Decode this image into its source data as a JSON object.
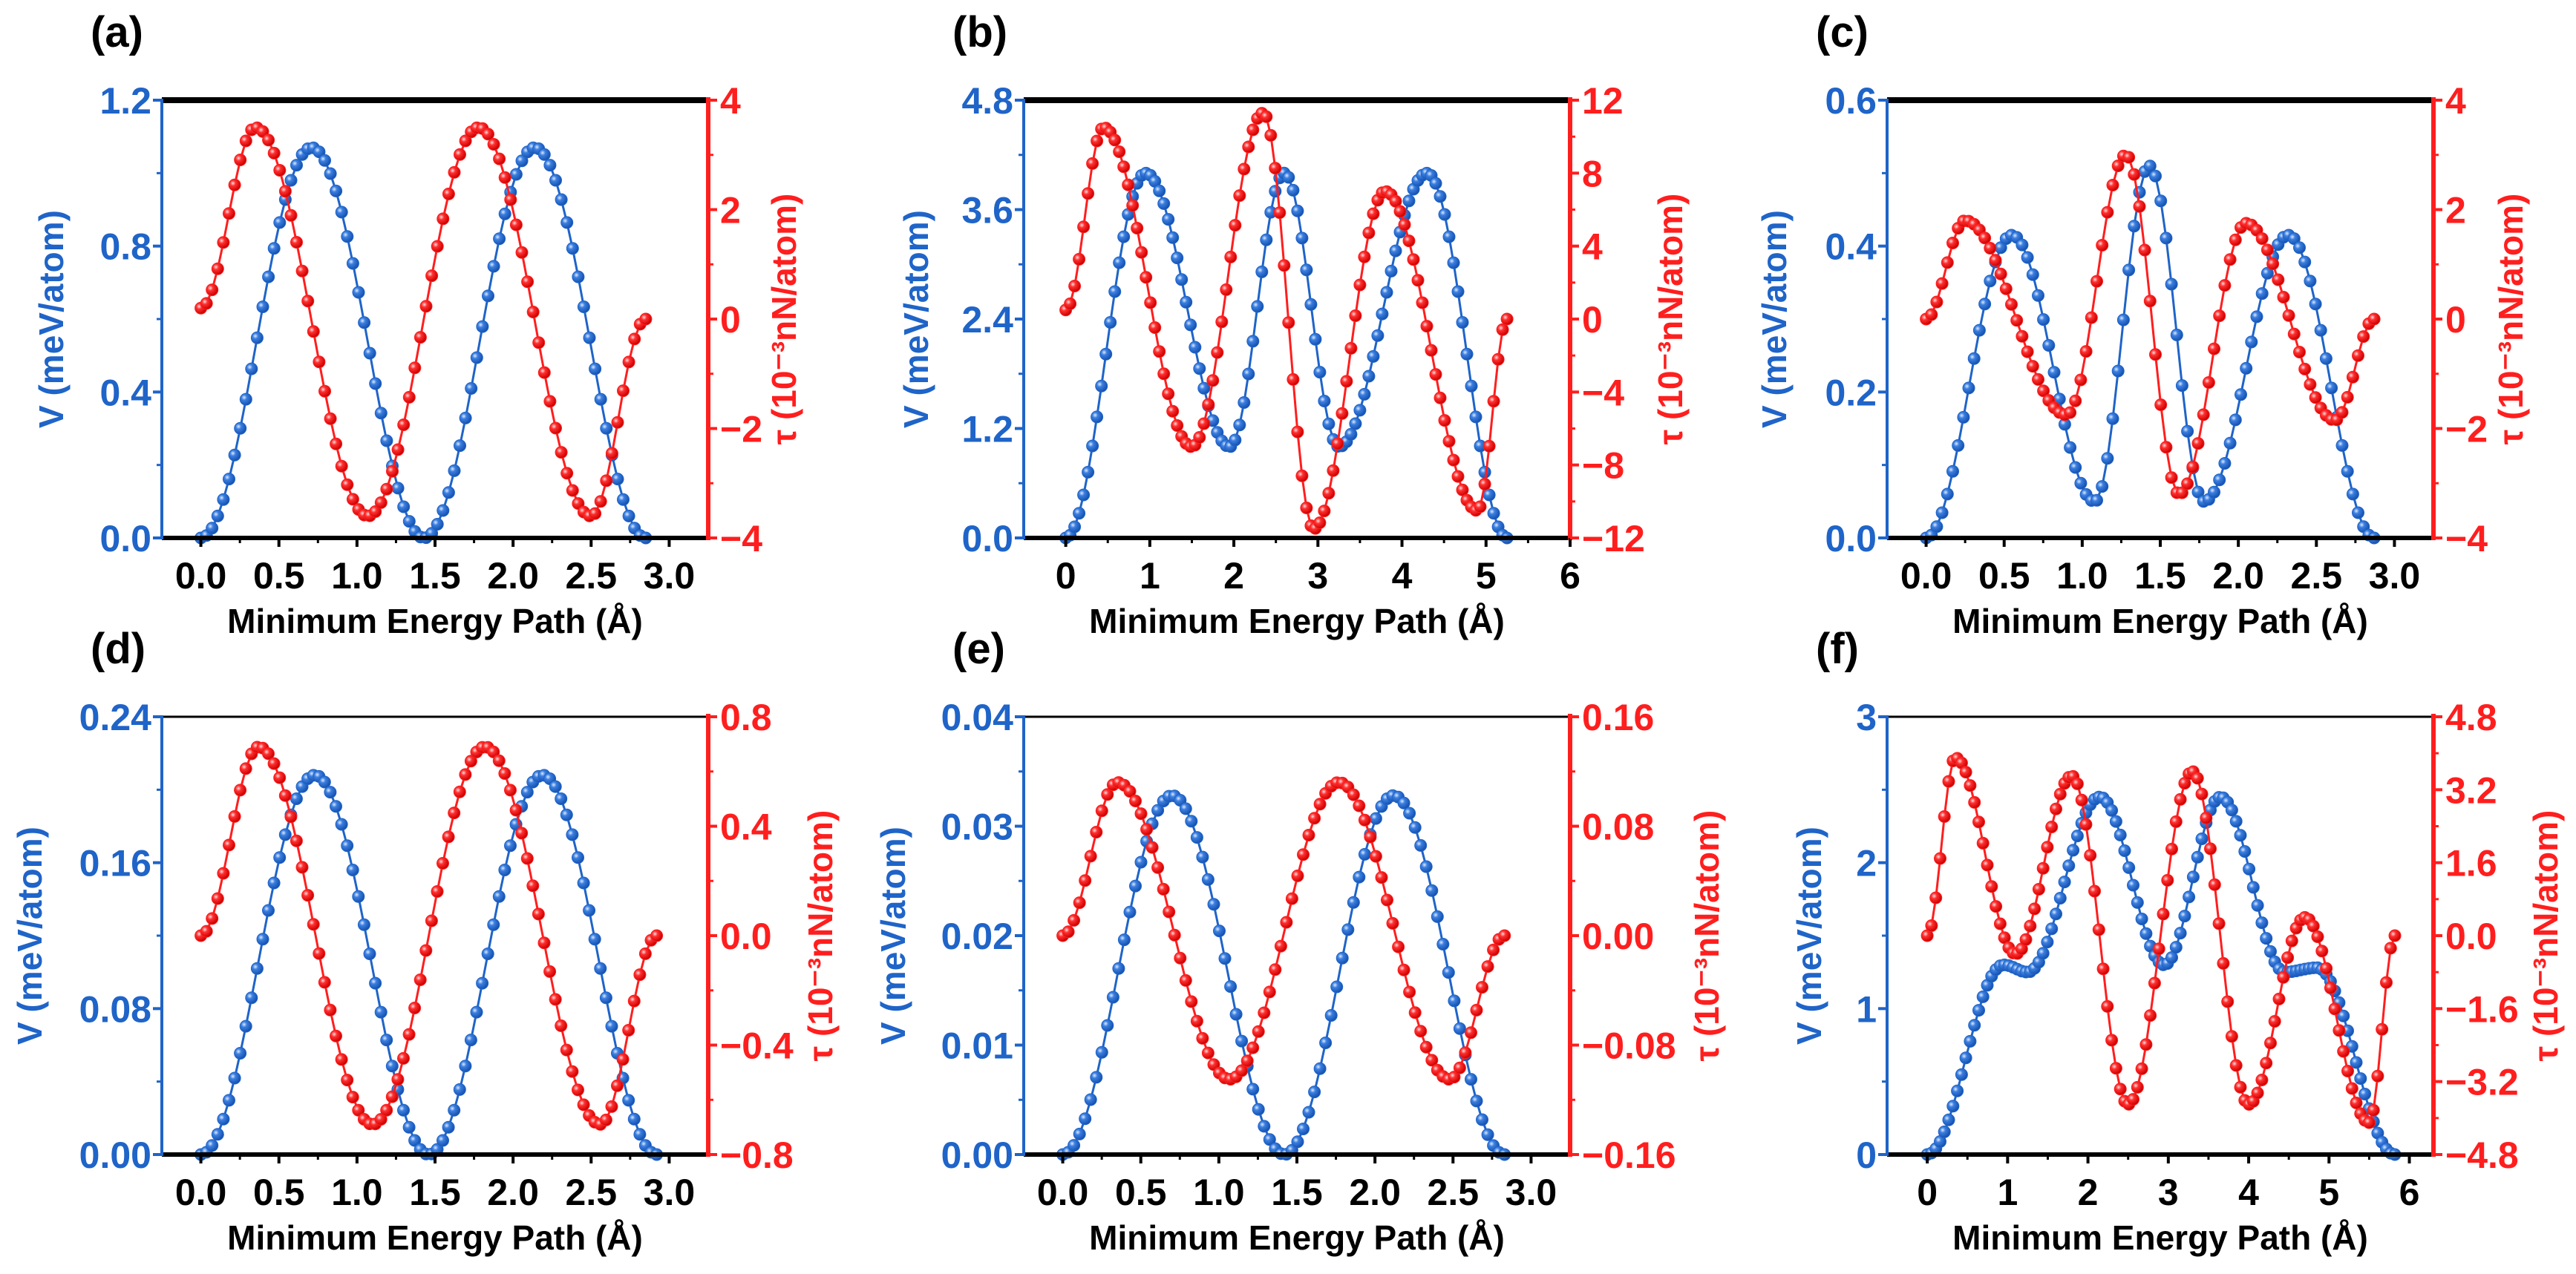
{
  "colors": {
    "v": "#1f64c8",
    "tau": "#ff1e1e",
    "axis": "#000000"
  },
  "chart_data": [
    {
      "panel_label": "(a)",
      "type": "line",
      "xlabel": "Minimum Energy Path (Å)",
      "ylabel_left": "V (meV/atom)",
      "ylabel_right": "τ (10⁻³nN/atom)",
      "xlim": [
        -0.25,
        3.25
      ],
      "ylim_left": [
        0,
        1.2
      ],
      "ylim_right": [
        -4,
        4
      ],
      "xticks": [
        "0.0",
        "0.5",
        "1.0",
        "1.5",
        "2.0",
        "2.5",
        "3.0"
      ],
      "yticks_left": [
        "0.0",
        "0.4",
        "0.8",
        "1.2"
      ],
      "yticks_right": [
        "−4",
        "−2",
        "0",
        "2",
        "4"
      ],
      "series": [
        {
          "name": "V",
          "axis": "left",
          "num_points": 80,
          "keypoints": [
            [
              0,
              0
            ],
            [
              0.71,
              1.07
            ],
            [
              1.43,
              0
            ],
            [
              2.14,
              1.07
            ],
            [
              2.85,
              0
            ]
          ]
        },
        {
          "name": "τ",
          "axis": "right",
          "num_points": 80,
          "keypoints": [
            [
              0,
              0.2
            ],
            [
              0.35,
              3.5
            ],
            [
              1.07,
              -3.6
            ],
            [
              1.78,
              3.5
            ],
            [
              2.5,
              -3.6
            ],
            [
              2.85,
              0
            ]
          ]
        }
      ]
    },
    {
      "panel_label": "(b)",
      "type": "line",
      "xlabel": "Minimum Energy Path (Å)",
      "ylabel_left": "V (meV/atom)",
      "ylabel_right": "τ (10⁻³nN/atom)",
      "xlim": [
        -0.5,
        6
      ],
      "ylim_left": [
        0,
        4.8
      ],
      "ylim_right": [
        -12,
        12
      ],
      "xticks": [
        "0",
        "1",
        "2",
        "3",
        "4",
        "5",
        "6"
      ],
      "yticks_left": [
        "0.0",
        "1.2",
        "2.4",
        "3.6",
        "4.8"
      ],
      "yticks_right": [
        "−12",
        "−8",
        "−4",
        "0",
        "4",
        "8",
        "12"
      ],
      "series": [
        {
          "name": "V",
          "axis": "left",
          "num_points": 100,
          "keypoints": [
            [
              0,
              0
            ],
            [
              0.95,
              4.0
            ],
            [
              1.95,
              1.0
            ],
            [
              2.6,
              4.0
            ],
            [
              3.25,
              1.0
            ],
            [
              4.3,
              4.0
            ],
            [
              5.25,
              0
            ]
          ]
        },
        {
          "name": "τ",
          "axis": "right",
          "num_points": 100,
          "keypoints": [
            [
              0,
              0.5
            ],
            [
              0.45,
              10.5
            ],
            [
              1.5,
              -7
            ],
            [
              2.35,
              11.3
            ],
            [
              2.95,
              -11.5
            ],
            [
              3.8,
              7
            ],
            [
              4.9,
              -10.5
            ],
            [
              5.25,
              0
            ]
          ]
        }
      ]
    },
    {
      "panel_label": "(c)",
      "type": "line",
      "xlabel": "Minimum Energy Path (Å)",
      "ylabel_left": "V (meV/atom)",
      "ylabel_right": "τ (10⁻³nN/atom)",
      "xlim": [
        -0.25,
        3.25
      ],
      "ylim_left": [
        0,
        0.6
      ],
      "ylim_right": [
        -4,
        4
      ],
      "xticks": [
        "0.0",
        "0.5",
        "1.0",
        "1.5",
        "2.0",
        "2.5",
        "3.0"
      ],
      "yticks_left": [
        "0.0",
        "0.2",
        "0.4",
        "0.6"
      ],
      "yticks_right": [
        "−4",
        "−2",
        "0",
        "2",
        "4"
      ],
      "series": [
        {
          "name": "V",
          "axis": "left",
          "num_points": 85,
          "keypoints": [
            [
              0,
              0
            ],
            [
              0.55,
              0.415
            ],
            [
              1.08,
              0.05
            ],
            [
              1.43,
              0.51
            ],
            [
              1.78,
              0.05
            ],
            [
              2.32,
              0.415
            ],
            [
              2.87,
              0
            ]
          ]
        },
        {
          "name": "τ",
          "axis": "right",
          "num_points": 85,
          "keypoints": [
            [
              0,
              0
            ],
            [
              0.25,
              1.8
            ],
            [
              0.9,
              -1.75
            ],
            [
              1.28,
              3.0
            ],
            [
              1.62,
              -3.2
            ],
            [
              2.05,
              1.75
            ],
            [
              2.62,
              -1.85
            ],
            [
              2.87,
              0
            ]
          ]
        }
      ]
    },
    {
      "panel_label": "(d)",
      "type": "line",
      "xlabel": "Minimum Energy Path (Å)",
      "ylabel_left": "V (meV/atom)",
      "ylabel_right": "τ (10⁻³nN/atom)",
      "xlim": [
        -0.25,
        3.25
      ],
      "ylim_left": [
        0,
        0.24
      ],
      "ylim_right": [
        -0.8,
        0.8
      ],
      "xticks": [
        "0.0",
        "0.5",
        "1.0",
        "1.5",
        "2.0",
        "2.5",
        "3.0"
      ],
      "yticks_left": [
        "0.00",
        "0.08",
        "0.16",
        "0.24"
      ],
      "yticks_right": [
        "−0.8",
        "−0.4",
        "0.0",
        "0.4",
        "0.8"
      ],
      "series": [
        {
          "name": "V",
          "axis": "left",
          "num_points": 82,
          "keypoints": [
            [
              0,
              0
            ],
            [
              0.73,
              0.208
            ],
            [
              1.46,
              0
            ],
            [
              2.19,
              0.208
            ],
            [
              2.92,
              0
            ]
          ]
        },
        {
          "name": "τ",
          "axis": "right",
          "num_points": 82,
          "keypoints": [
            [
              0,
              0
            ],
            [
              0.37,
              0.69
            ],
            [
              1.1,
              -0.69
            ],
            [
              1.82,
              0.69
            ],
            [
              2.56,
              -0.69
            ],
            [
              2.92,
              0
            ]
          ]
        }
      ]
    },
    {
      "panel_label": "(e)",
      "type": "line",
      "xlabel": "Minimum Energy Path (Å)",
      "ylabel_left": "V (meV/atom)",
      "ylabel_right": "τ (10⁻³nN/atom)",
      "xlim": [
        -0.25,
        3.25
      ],
      "ylim_left": [
        0,
        0.04
      ],
      "ylim_right": [
        -0.16,
        0.16
      ],
      "xticks": [
        "0.0",
        "0.5",
        "1.0",
        "1.5",
        "2.0",
        "2.5",
        "3.0"
      ],
      "yticks_left": [
        "0.00",
        "0.01",
        "0.02",
        "0.03",
        "0.04"
      ],
      "yticks_right": [
        "−0.16",
        "−0.08",
        "0.00",
        "0.08",
        "0.16"
      ],
      "series": [
        {
          "name": "V",
          "axis": "left",
          "num_points": 80,
          "keypoints": [
            [
              0,
              0
            ],
            [
              0.7,
              0.0328
            ],
            [
              1.42,
              0
            ],
            [
              2.12,
              0.0328
            ],
            [
              2.83,
              0
            ]
          ]
        },
        {
          "name": "τ",
          "axis": "right",
          "num_points": 80,
          "keypoints": [
            [
              0,
              0
            ],
            [
              0.35,
              0.112
            ],
            [
              1.07,
              -0.105
            ],
            [
              1.77,
              0.112
            ],
            [
              2.48,
              -0.105
            ],
            [
              2.83,
              0
            ]
          ]
        }
      ]
    },
    {
      "panel_label": "(f)",
      "type": "line",
      "xlabel": "Minimum Energy Path (Å)",
      "ylabel_left": "V (meV/atom)",
      "ylabel_right": "τ (10⁻³nN/atom)",
      "xlim": [
        -0.5,
        6.3
      ],
      "ylim_left": [
        0,
        3
      ],
      "ylim_right": [
        -4.8,
        4.8
      ],
      "xticks": [
        "0",
        "1",
        "2",
        "3",
        "4",
        "5",
        "6"
      ],
      "yticks_left": [
        "0",
        "1",
        "2",
        "3"
      ],
      "yticks_right": [
        "−4.8",
        "−3.2",
        "−1.6",
        "0.0",
        "1.6",
        "3.2",
        "4.8"
      ],
      "series": [
        {
          "name": "V",
          "axis": "left",
          "num_points": 110,
          "keypoints": [
            [
              0,
              0
            ],
            [
              0.95,
              1.3
            ],
            [
              1.25,
              1.25
            ],
            [
              2.15,
              2.45
            ],
            [
              2.95,
              1.3
            ],
            [
              3.65,
              2.45
            ],
            [
              4.45,
              1.25
            ],
            [
              4.85,
              1.28
            ],
            [
              5.82,
              0
            ]
          ]
        },
        {
          "name": "τ",
          "axis": "right",
          "num_points": 110,
          "keypoints": [
            [
              0,
              0
            ],
            [
              0.35,
              3.9
            ],
            [
              1.1,
              -0.4
            ],
            [
              1.8,
              3.5
            ],
            [
              2.5,
              -3.7
            ],
            [
              3.3,
              3.6
            ],
            [
              4.0,
              -3.7
            ],
            [
              4.7,
              0.4
            ],
            [
              5.5,
              -4.1
            ],
            [
              5.82,
              0
            ]
          ]
        }
      ]
    }
  ]
}
